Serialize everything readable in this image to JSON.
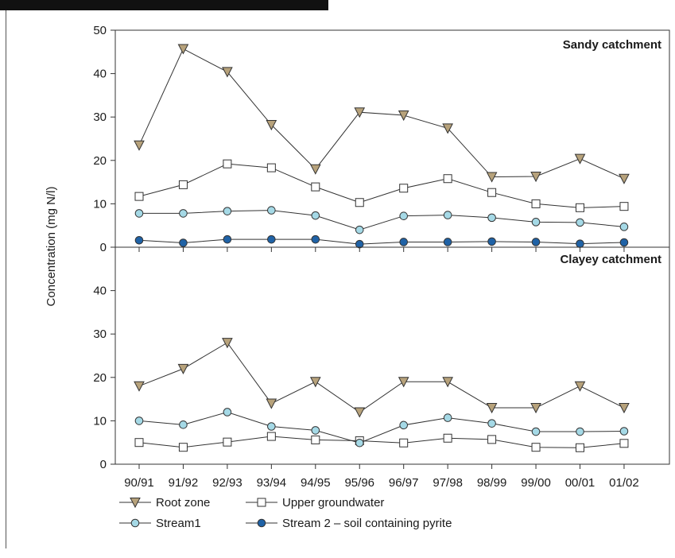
{
  "figure": {
    "header_bar_color": "#111111"
  },
  "chart_data": [
    {
      "type": "line",
      "title": "Sandy catchment",
      "ylabel": "Concentration (mg N/l)",
      "ylim": [
        0,
        50
      ],
      "yticks": [
        0,
        10,
        20,
        30,
        40,
        50
      ],
      "categories": [
        "90/91",
        "91/92",
        "92/93",
        "93/94",
        "94/95",
        "95/96",
        "96/97",
        "97/98",
        "98/99",
        "99/00",
        "00/01",
        "01/02"
      ],
      "grid": false,
      "series": [
        {
          "name": "Root zone",
          "marker": "triangle-down",
          "color": "#b7a27b",
          "values": [
            23.5,
            45.7,
            40.4,
            28.2,
            18,
            31.1,
            30.4,
            27.4,
            16.2,
            16.3,
            20.4,
            15.8
          ]
        },
        {
          "name": "Upper groundwater",
          "marker": "square",
          "color": "#ffffff",
          "values": [
            11.7,
            14.4,
            19.2,
            18.3,
            13.9,
            10.3,
            13.6,
            15.8,
            12.6,
            10,
            9.1,
            9.4
          ]
        },
        {
          "name": "Stream1",
          "marker": "circle",
          "color": "#a5d9e6",
          "values": [
            7.8,
            7.8,
            8.3,
            8.5,
            7.3,
            4,
            7.2,
            7.4,
            6.8,
            5.8,
            5.7,
            4.7
          ]
        },
        {
          "name": "Stream 2 – soil containing pyrite",
          "marker": "circle",
          "color": "#1f62a6",
          "values": [
            1.6,
            1,
            1.8,
            1.8,
            1.8,
            0.7,
            1.2,
            1.2,
            1.3,
            1.2,
            0.8,
            1.1
          ]
        }
      ]
    },
    {
      "type": "line",
      "title": "Clayey catchment",
      "ylim": [
        0,
        50
      ],
      "yticks": [
        0,
        10,
        20,
        30,
        40
      ],
      "categories": [
        "90/91",
        "91/92",
        "92/93",
        "93/94",
        "94/95",
        "95/96",
        "96/97",
        "97/98",
        "98/99",
        "99/00",
        "00/01",
        "01/02"
      ],
      "grid": false,
      "series": [
        {
          "name": "Root zone",
          "marker": "triangle-down",
          "color": "#b7a27b",
          "values": [
            18,
            22,
            28,
            14,
            19,
            12,
            19,
            19,
            13,
            13,
            18,
            13
          ]
        },
        {
          "name": "Upper groundwater",
          "marker": "square",
          "color": "#ffffff",
          "values": [
            5,
            3.9,
            5.1,
            6.4,
            5.6,
            5.4,
            4.9,
            6,
            5.7,
            3.9,
            3.8,
            4.8
          ]
        },
        {
          "name": "Stream1",
          "marker": "circle",
          "color": "#a5d9e6",
          "values": [
            10,
            9.1,
            12,
            8.7,
            7.8,
            4.9,
            9,
            10.7,
            9.4,
            7.5,
            7.5,
            7.6
          ]
        }
      ]
    }
  ],
  "legend": {
    "placement": "bottom",
    "items": [
      {
        "label": "Root zone",
        "marker": "triangle-down",
        "color": "#b7a27b"
      },
      {
        "label": "Upper groundwater",
        "marker": "square",
        "color": "#ffffff"
      },
      {
        "label": "Stream1",
        "marker": "circle",
        "color": "#a5d9e6"
      },
      {
        "label": "Stream 2 – soil containing pyrite",
        "marker": "circle",
        "color": "#1f62a6"
      }
    ]
  }
}
